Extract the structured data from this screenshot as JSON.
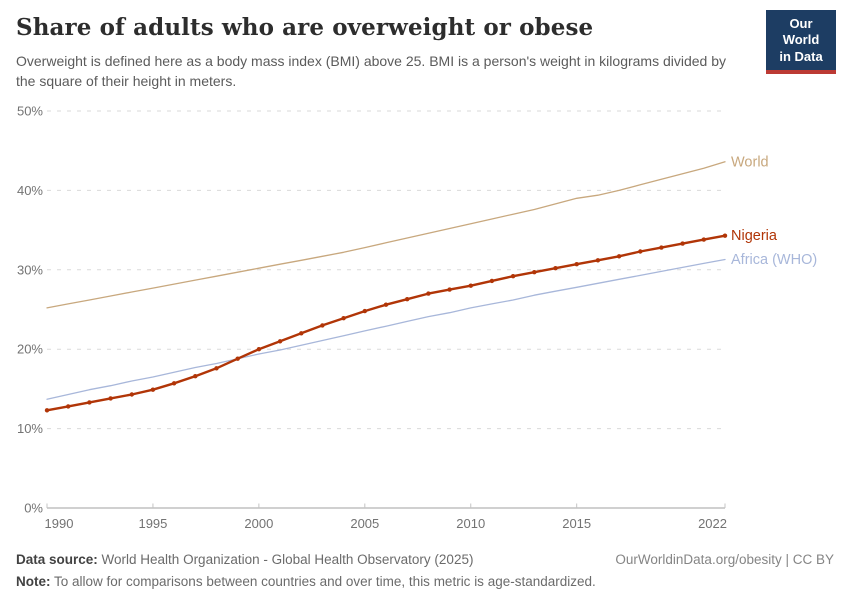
{
  "header": {
    "title": "Share of adults who are overweight or obese",
    "subtitle": "Overweight is defined here as a body mass index (BMI) above 25. BMI is a person's weight in kilograms divided by the square of their height in meters.",
    "logo_line1": "Our World",
    "logo_line2": "in Data",
    "logo_bg": "#1d3d63",
    "logo_stripe": "#bc3a34"
  },
  "chart_data": {
    "type": "line",
    "title": "Share of adults who are overweight or obese",
    "xlabel": "",
    "ylabel": "",
    "ylim": [
      0,
      50
    ],
    "grid": "horizontal-dashed",
    "legend_position": "right-end-labels",
    "y_ticks": [
      "0%",
      "10%",
      "20%",
      "30%",
      "40%",
      "50%"
    ],
    "x_ticks": [
      1990,
      1995,
      2000,
      2005,
      2010,
      2015,
      2022
    ],
    "x": [
      1990,
      1991,
      1992,
      1993,
      1994,
      1995,
      1996,
      1997,
      1998,
      1999,
      2000,
      2001,
      2002,
      2003,
      2004,
      2005,
      2006,
      2007,
      2008,
      2009,
      2010,
      2011,
      2012,
      2013,
      2014,
      2015,
      2016,
      2017,
      2018,
      2019,
      2020,
      2021,
      2022
    ],
    "series": [
      {
        "name": "World",
        "color": "#C8A87E",
        "line_width": 1.3,
        "markers": false,
        "values": [
          25.2,
          25.7,
          26.2,
          26.7,
          27.2,
          27.7,
          28.2,
          28.7,
          29.2,
          29.7,
          30.2,
          30.7,
          31.2,
          31.7,
          32.2,
          32.8,
          33.4,
          34.0,
          34.6,
          35.2,
          35.8,
          36.4,
          37.0,
          37.6,
          38.3,
          39.0,
          39.4,
          40.0,
          40.7,
          41.4,
          42.1,
          42.8,
          43.6
        ]
      },
      {
        "name": "Africa (WHO)",
        "color": "#A8B7DA",
        "line_width": 1.3,
        "markers": false,
        "values": [
          13.7,
          14.3,
          14.9,
          15.4,
          16.0,
          16.5,
          17.1,
          17.7,
          18.2,
          18.8,
          19.4,
          19.9,
          20.5,
          21.1,
          21.7,
          22.3,
          22.9,
          23.5,
          24.1,
          24.6,
          25.2,
          25.7,
          26.2,
          26.8,
          27.3,
          27.8,
          28.3,
          28.8,
          29.3,
          29.8,
          30.3,
          30.8,
          31.3
        ]
      },
      {
        "name": "Nigeria",
        "color": "#B13507",
        "line_width": 2.4,
        "markers": true,
        "values": [
          12.3,
          12.8,
          13.3,
          13.8,
          14.3,
          14.9,
          15.7,
          16.6,
          17.6,
          18.8,
          20.0,
          21.0,
          22.0,
          23.0,
          23.9,
          24.8,
          25.6,
          26.3,
          27.0,
          27.5,
          28.0,
          28.6,
          29.2,
          29.7,
          30.2,
          30.7,
          31.2,
          31.7,
          32.3,
          32.8,
          33.3,
          33.8,
          34.3
        ]
      }
    ]
  },
  "footer": {
    "datasource_label": "Data source:",
    "datasource_text": " World Health Organization - Global Health Observatory (2025)",
    "note_label": "Note:",
    "note_text": " To allow for comparisons between countries and over time, this metric is age-standardized.",
    "link": "OurWorldinData.org/obesity | CC BY"
  }
}
